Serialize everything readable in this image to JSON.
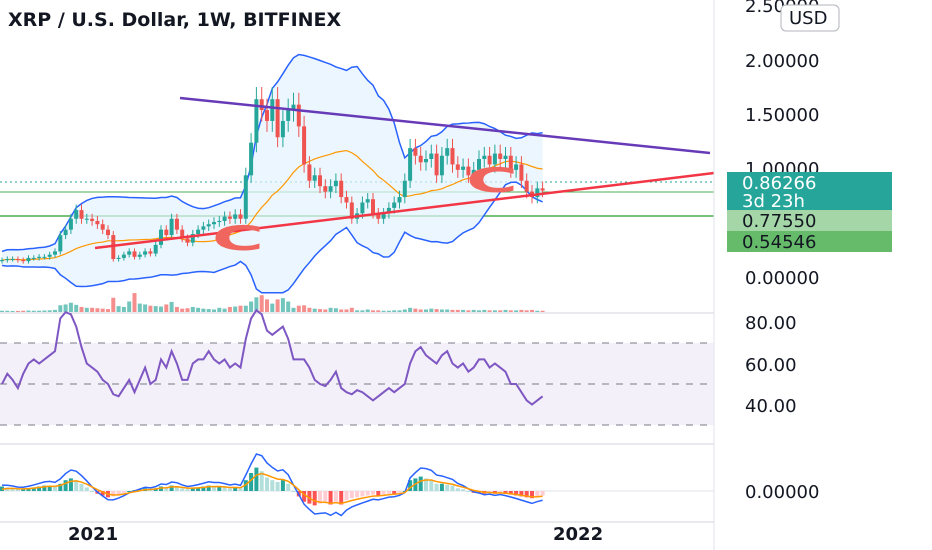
{
  "title": "XRP / U.S. Dollar, 1W, BITFINEX",
  "currency_button": "USD",
  "colors": {
    "up": "#26a69a",
    "down": "#ef5350",
    "bb": "#2962ff",
    "ma": "#ff9800",
    "rsi": "#7e57c2",
    "resistance": "#673ab7",
    "support": "#f23645",
    "hline": "#4caf50"
  },
  "price_axis": [
    "2.50000",
    "2.00000",
    "1.50000",
    "1.00000",
    "0.00000"
  ],
  "price_tags": {
    "last_price": "0.86266",
    "countdown": "3d 23h",
    "level_1": "0.77550",
    "level_2": "0.54546"
  },
  "rsi_axis": [
    "80.00",
    "60.00",
    "40.00"
  ],
  "macd_axis": [
    "0.00000"
  ],
  "time_axis": [
    "2021",
    "2022"
  ],
  "annotations": [
    "C",
    "C"
  ],
  "chart_data": [
    {
      "type": "candlestick",
      "panel": "price",
      "title": "XRP / U.S. Dollar, 1W, BITFINEX",
      "ylim": [
        -0.1,
        2.6
      ],
      "close": [
        0.22,
        0.23,
        0.23,
        0.22,
        0.21,
        0.24,
        0.24,
        0.25,
        0.25,
        0.27,
        0.3,
        0.45,
        0.5,
        0.6,
        0.68,
        0.6,
        0.6,
        0.58,
        0.55,
        0.5,
        0.45,
        0.23,
        0.24,
        0.27,
        0.3,
        0.25,
        0.27,
        0.3,
        0.28,
        0.36,
        0.5,
        0.45,
        0.6,
        0.5,
        0.42,
        0.38,
        0.46,
        0.5,
        0.53,
        0.55,
        0.57,
        0.58,
        0.62,
        0.6,
        0.64,
        0.6,
        1.0,
        1.3,
        1.7,
        1.6,
        1.5,
        1.7,
        1.35,
        1.5,
        1.6,
        1.65,
        1.45,
        1.1,
        0.95,
        1.0,
        0.9,
        0.85,
        0.9,
        0.95,
        0.8,
        0.75,
        0.6,
        0.65,
        0.75,
        0.78,
        0.65,
        0.6,
        0.65,
        0.7,
        0.75,
        0.8,
        0.95,
        1.25,
        1.18,
        1.12,
        1.15,
        1.2,
        1.0,
        1.18,
        1.25,
        1.1,
        1.05,
        1.08,
        1.0,
        1.05,
        1.15,
        1.18,
        1.1,
        1.2,
        1.15,
        1.18,
        1.05,
        1.1,
        0.95,
        0.85,
        0.8,
        0.88,
        0.86
      ],
      "volume": [
        0.3,
        0.3,
        0.25,
        0.25,
        0.3,
        0.35,
        0.3,
        0.3,
        0.35,
        0.4,
        0.5,
        1.6,
        1.8,
        2.2,
        1.7,
        1.2,
        1.0,
        1.0,
        0.9,
        0.8,
        0.7,
        3.4,
        1.4,
        1.2,
        2.5,
        4.5,
        2.0,
        1.8,
        1.5,
        1.4,
        1.3,
        1.8,
        2.4,
        1.2,
        0.8,
        0.9,
        1.2,
        1.0,
        0.8,
        0.7,
        0.6,
        1.0,
        0.8,
        1.2,
        1.3,
        1.5,
        1.5,
        2.5,
        3.5,
        4.0,
        3.0,
        2.0,
        3.0,
        3.3,
        2.5,
        1.0,
        1.5,
        1.6,
        1.0,
        0.8,
        0.7,
        0.6,
        1.0,
        0.9,
        0.6,
        0.6,
        1.0,
        0.4,
        0.4,
        0.6,
        0.4,
        0.4,
        0.3,
        0.3,
        0.4,
        0.4,
        0.6,
        1.0,
        0.8,
        0.6,
        0.6,
        0.8,
        0.7,
        0.6,
        0.6,
        0.5,
        0.5,
        0.5,
        0.4,
        0.5,
        0.4,
        0.5,
        0.4,
        0.4,
        0.4,
        0.5,
        0.4,
        0.4,
        0.5,
        0.4,
        0.5,
        0.3,
        0.3
      ],
      "last_price": 0.86266,
      "levels": [
        0.7755,
        0.54546
      ]
    },
    {
      "type": "line",
      "panel": "rsi",
      "ylim": [
        25,
        90
      ],
      "values": [
        50,
        55,
        52,
        48,
        55,
        60,
        62,
        60,
        62,
        64,
        66,
        82,
        85,
        84,
        78,
        68,
        60,
        58,
        56,
        52,
        50,
        45,
        44,
        48,
        52,
        46,
        52,
        58,
        50,
        52,
        62,
        58,
        66,
        60,
        52,
        52,
        60,
        62,
        62,
        66,
        62,
        60,
        62,
        58,
        60,
        58,
        72,
        82,
        86,
        84,
        76,
        74,
        76,
        78,
        72,
        62,
        62,
        62,
        58,
        52,
        50,
        49,
        52,
        56,
        48,
        46,
        45,
        47,
        46,
        44,
        42,
        44,
        46,
        48,
        46,
        48,
        50,
        60,
        66,
        68,
        64,
        62,
        60,
        64,
        66,
        60,
        58,
        60,
        56,
        58,
        62,
        62,
        58,
        60,
        58,
        56,
        50,
        50,
        46,
        42,
        40,
        42,
        44
      ],
      "guides": [
        70,
        50,
        30
      ]
    },
    {
      "type": "histogram",
      "panel": "macd",
      "values": [
        0.05,
        0.04,
        0.03,
        0.02,
        0.02,
        0.03,
        0.04,
        0.05,
        0.06,
        0.06,
        0.05,
        0.08,
        0.12,
        0.14,
        0.12,
        0.08,
        0.04,
        0.0,
        -0.03,
        -0.05,
        -0.07,
        -0.06,
        -0.04,
        -0.02,
        0.0,
        0.01,
        0.02,
        0.03,
        0.02,
        0.03,
        0.05,
        0.04,
        0.06,
        0.05,
        0.03,
        0.02,
        0.03,
        0.04,
        0.05,
        0.06,
        0.05,
        0.05,
        0.04,
        0.03,
        0.04,
        0.03,
        0.12,
        0.2,
        0.26,
        0.22,
        0.15,
        0.12,
        0.1,
        0.12,
        0.08,
        0.0,
        -0.06,
        -0.12,
        -0.14,
        -0.16,
        -0.14,
        -0.13,
        -0.15,
        -0.12,
        -0.15,
        -0.1,
        -0.08,
        -0.07,
        -0.06,
        -0.05,
        -0.04,
        -0.05,
        -0.04,
        -0.03,
        -0.03,
        -0.02,
        0.0,
        0.12,
        0.14,
        0.16,
        0.14,
        0.12,
        0.08,
        0.08,
        0.07,
        0.06,
        0.03,
        0.02,
        0.0,
        -0.02,
        -0.02,
        -0.03,
        -0.02,
        -0.03,
        -0.02,
        -0.03,
        -0.04,
        -0.05,
        -0.06,
        -0.07,
        -0.08,
        -0.06,
        -0.05
      ]
    }
  ]
}
